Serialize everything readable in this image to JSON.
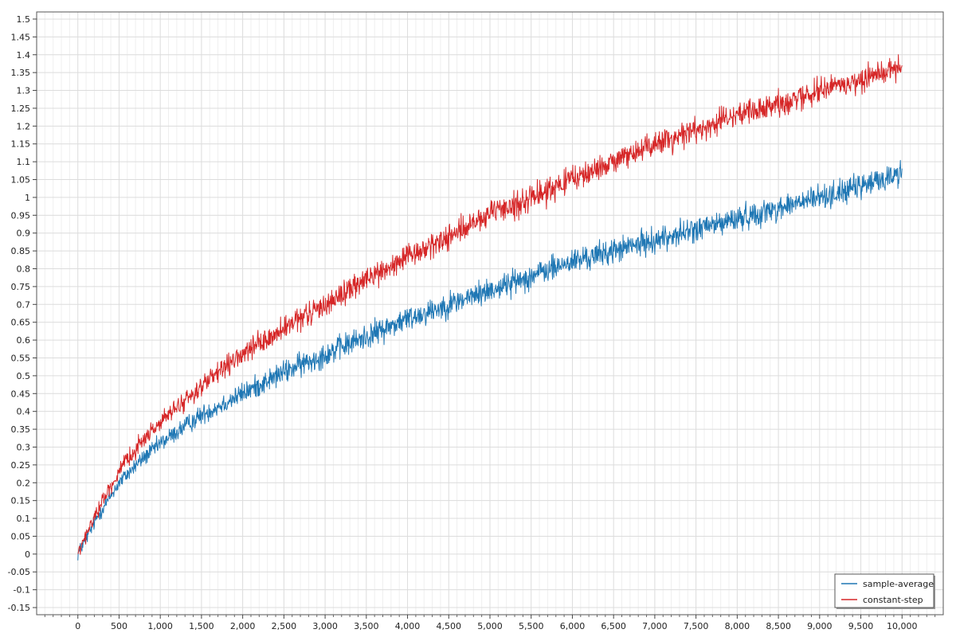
{
  "chart_data": {
    "type": "line",
    "title": "",
    "xlabel": "",
    "ylabel": "",
    "xlim": [
      -500,
      10500
    ],
    "ylim": [
      -0.17,
      1.52
    ],
    "x_ticks": [
      0,
      500,
      1000,
      1500,
      2000,
      2500,
      3000,
      3500,
      4000,
      4500,
      5000,
      5500,
      6000,
      6500,
      7000,
      7500,
      8000,
      8500,
      9000,
      9500,
      10000
    ],
    "x_tick_labels": [
      "0",
      "500",
      "1,000",
      "1,500",
      "2,000",
      "2,500",
      "3,000",
      "3,500",
      "4,000",
      "4,500",
      "5,000",
      "5,500",
      "6,000",
      "6,500",
      "7,000",
      "7,500",
      "8,000",
      "8,500",
      "9,000",
      "9,500",
      "10,000"
    ],
    "y_ticks": [
      -0.15,
      -0.1,
      -0.05,
      0,
      0.05,
      0.1,
      0.15,
      0.2,
      0.25,
      0.3,
      0.35,
      0.4,
      0.45,
      0.5,
      0.55,
      0.6,
      0.65,
      0.7,
      0.75,
      0.8,
      0.85,
      0.9,
      0.95,
      1,
      1.05,
      1.1,
      1.15,
      1.2,
      1.25,
      1.3,
      1.35,
      1.4,
      1.45,
      1.5
    ],
    "y_tick_labels": [
      "-0.15",
      "-0.1",
      "-0.05",
      "0",
      "0.05",
      "0.1",
      "0.15",
      "0.2",
      "0.25",
      "0.3",
      "0.35",
      "0.4",
      "0.45",
      "0.5",
      "0.55",
      "0.6",
      "0.65",
      "0.7",
      "0.75",
      "0.8",
      "0.85",
      "0.9",
      "0.95",
      "1",
      "1.05",
      "1.1",
      "1.15",
      "1.2",
      "1.25",
      "1.3",
      "1.35",
      "1.4",
      "1.45",
      "1.5"
    ],
    "grid": true,
    "legend_position": "bottom-right",
    "noise_amplitude": 0.035,
    "series": [
      {
        "name": "sample-average",
        "color": "#1f77b4",
        "x": [
          0,
          250,
          500,
          750,
          1000,
          1500,
          2000,
          2500,
          3000,
          3500,
          4000,
          4500,
          5000,
          5500,
          6000,
          6500,
          7000,
          7500,
          8000,
          8500,
          9000,
          9500,
          10000
        ],
        "y": [
          0.0,
          0.11,
          0.2,
          0.26,
          0.31,
          0.39,
          0.45,
          0.51,
          0.56,
          0.61,
          0.66,
          0.7,
          0.74,
          0.78,
          0.82,
          0.85,
          0.88,
          0.91,
          0.94,
          0.97,
          1.0,
          1.03,
          1.07
        ]
      },
      {
        "name": "constant-step",
        "color": "#d62728",
        "x": [
          0,
          250,
          500,
          750,
          1000,
          1500,
          2000,
          2500,
          3000,
          3500,
          4000,
          4500,
          5000,
          5500,
          6000,
          6500,
          7000,
          7500,
          8000,
          8500,
          9000,
          9500,
          10000
        ],
        "y": [
          0.0,
          0.13,
          0.23,
          0.31,
          0.37,
          0.47,
          0.56,
          0.63,
          0.7,
          0.77,
          0.83,
          0.89,
          0.95,
          1.0,
          1.05,
          1.1,
          1.15,
          1.19,
          1.23,
          1.26,
          1.3,
          1.33,
          1.37
        ]
      }
    ]
  }
}
